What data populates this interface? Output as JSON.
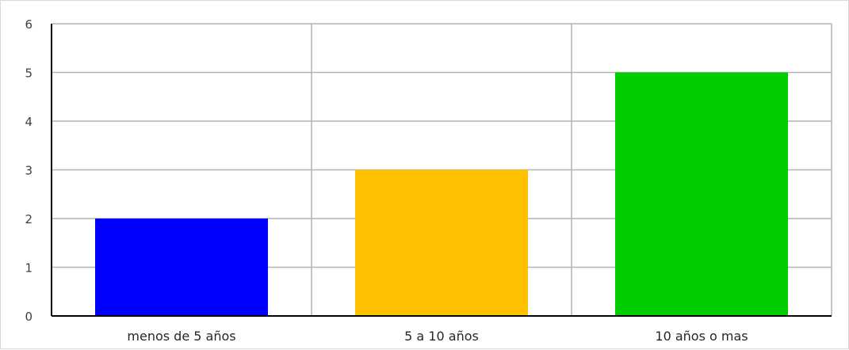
{
  "chart_data": {
    "type": "bar",
    "title": "",
    "xlabel": "",
    "ylabel": "",
    "categories": [
      "menos de 5 años",
      "5 a 10 años",
      "10 años o mas"
    ],
    "values": [
      2,
      3,
      5
    ],
    "colors": [
      "#0000ff",
      "#ffc000",
      "#00cc00"
    ],
    "ylim": [
      0,
      6
    ],
    "yticks": [
      0,
      1,
      2,
      3,
      4,
      5,
      6
    ],
    "grid": {
      "horizontal": true,
      "vertical": true,
      "color": "#b3b3b3"
    },
    "legend": "none"
  }
}
